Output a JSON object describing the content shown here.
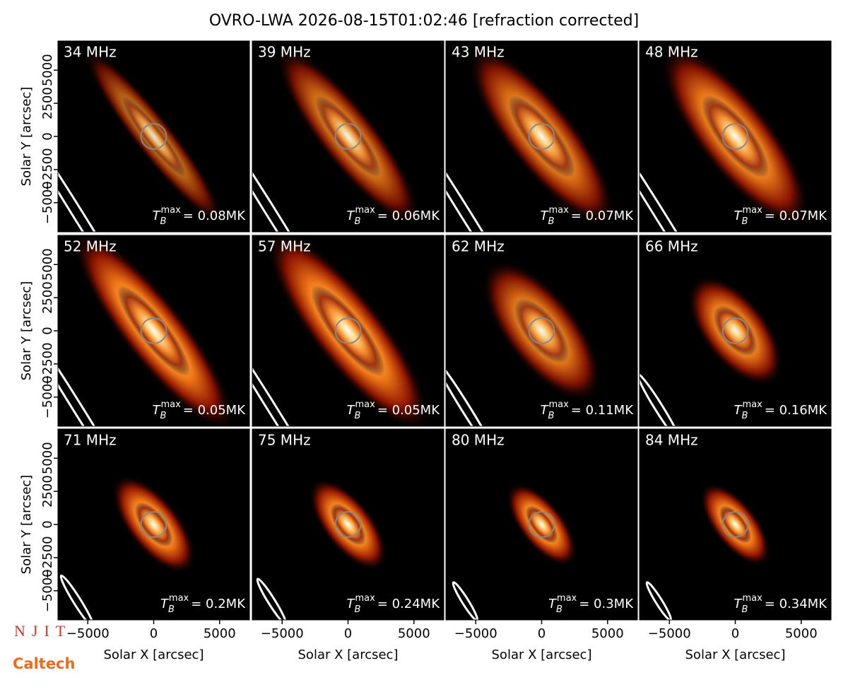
{
  "chart_data": {
    "type": "image-grid",
    "title": "OVRO-LWA 2026-08-15T01:02:46 [refraction corrected]",
    "xlabel": "Solar X [arcsec]",
    "ylabel": "Solar Y [arcsec]",
    "xlim": [
      -7265,
      7265
    ],
    "ylim": [
      -7200,
      7200
    ],
    "xticks": [
      {
        "value": -5000,
        "label": "−5000"
      },
      0,
      5000
    ],
    "yticks": [
      {
        "value": -5000,
        "label": "−5000"
      },
      {
        "value": -2500,
        "label": "−2500"
      },
      0,
      2500,
      5000
    ],
    "tb_symbol": {
      "main": "T",
      "sub": "B",
      "sup": "max"
    },
    "panels": [
      {
        "frequency": "34 MHz",
        "tb_max": "= 0.08MK"
      },
      {
        "frequency": "39 MHz",
        "tb_max": "= 0.06MK"
      },
      {
        "frequency": "43 MHz",
        "tb_max": "= 0.07MK"
      },
      {
        "frequency": "48 MHz",
        "tb_max": "= 0.07MK"
      },
      {
        "frequency": "52 MHz",
        "tb_max": "= 0.05MK"
      },
      {
        "frequency": "57 MHz",
        "tb_max": "= 0.05MK"
      },
      {
        "frequency": "62 MHz",
        "tb_max": "= 0.11MK"
      },
      {
        "frequency": "66 MHz",
        "tb_max": "= 0.16MK"
      },
      {
        "frequency": "71 MHz",
        "tb_max": "= 0.2MK"
      },
      {
        "frequency": "75 MHz",
        "tb_max": "= 0.24MK"
      },
      {
        "frequency": "80 MHz",
        "tb_max": "= 0.3MK"
      },
      {
        "frequency": "84 MHz",
        "tb_max": "= 0.34MK"
      }
    ],
    "logos": [
      "NJIT",
      "Caltech"
    ]
  }
}
